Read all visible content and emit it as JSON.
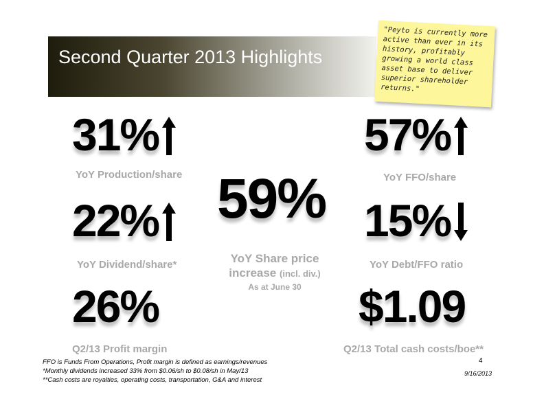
{
  "header": {
    "title": "Second Quarter 2013 Highlights"
  },
  "quote": {
    "lines": [
      "\"Peyto is currently more",
      "active than ever in its",
      "history, profitably",
      "growing a world class",
      "asset base to deliver",
      "superior shareholder",
      "returns.\""
    ]
  },
  "metrics": [
    {
      "value": "31%",
      "label": "YoY Production/share"
    },
    {
      "value": "22%",
      "label": "YoY Dividend/share*"
    },
    {
      "value": "26%",
      "label": "Q2/13 Profit margin"
    },
    {
      "value": "57%",
      "label": "YoY FFO/share"
    },
    {
      "value": "15%",
      "label": "YoY Debt/FFO ratio"
    },
    {
      "value": "$1.09",
      "label": "Q2/13 Total cash costs/boe**"
    }
  ],
  "center_metric": {
    "value": "59%",
    "label_line1": "YoY Share price",
    "label_line2": "increase",
    "label_paren": "(incl. div.)",
    "note": "As at June 30"
  },
  "footnotes": [
    "FFO is Funds From Operations, Profit margin is defined as earnings/revenues",
    "*Monthly dividends increased 33% from $0.06/sh to $0.08/sh in May/13",
    "**Cash costs are royalties, operating costs, transportation, G&A and interest"
  ],
  "page_number": "4",
  "date": "9/16/2013"
}
